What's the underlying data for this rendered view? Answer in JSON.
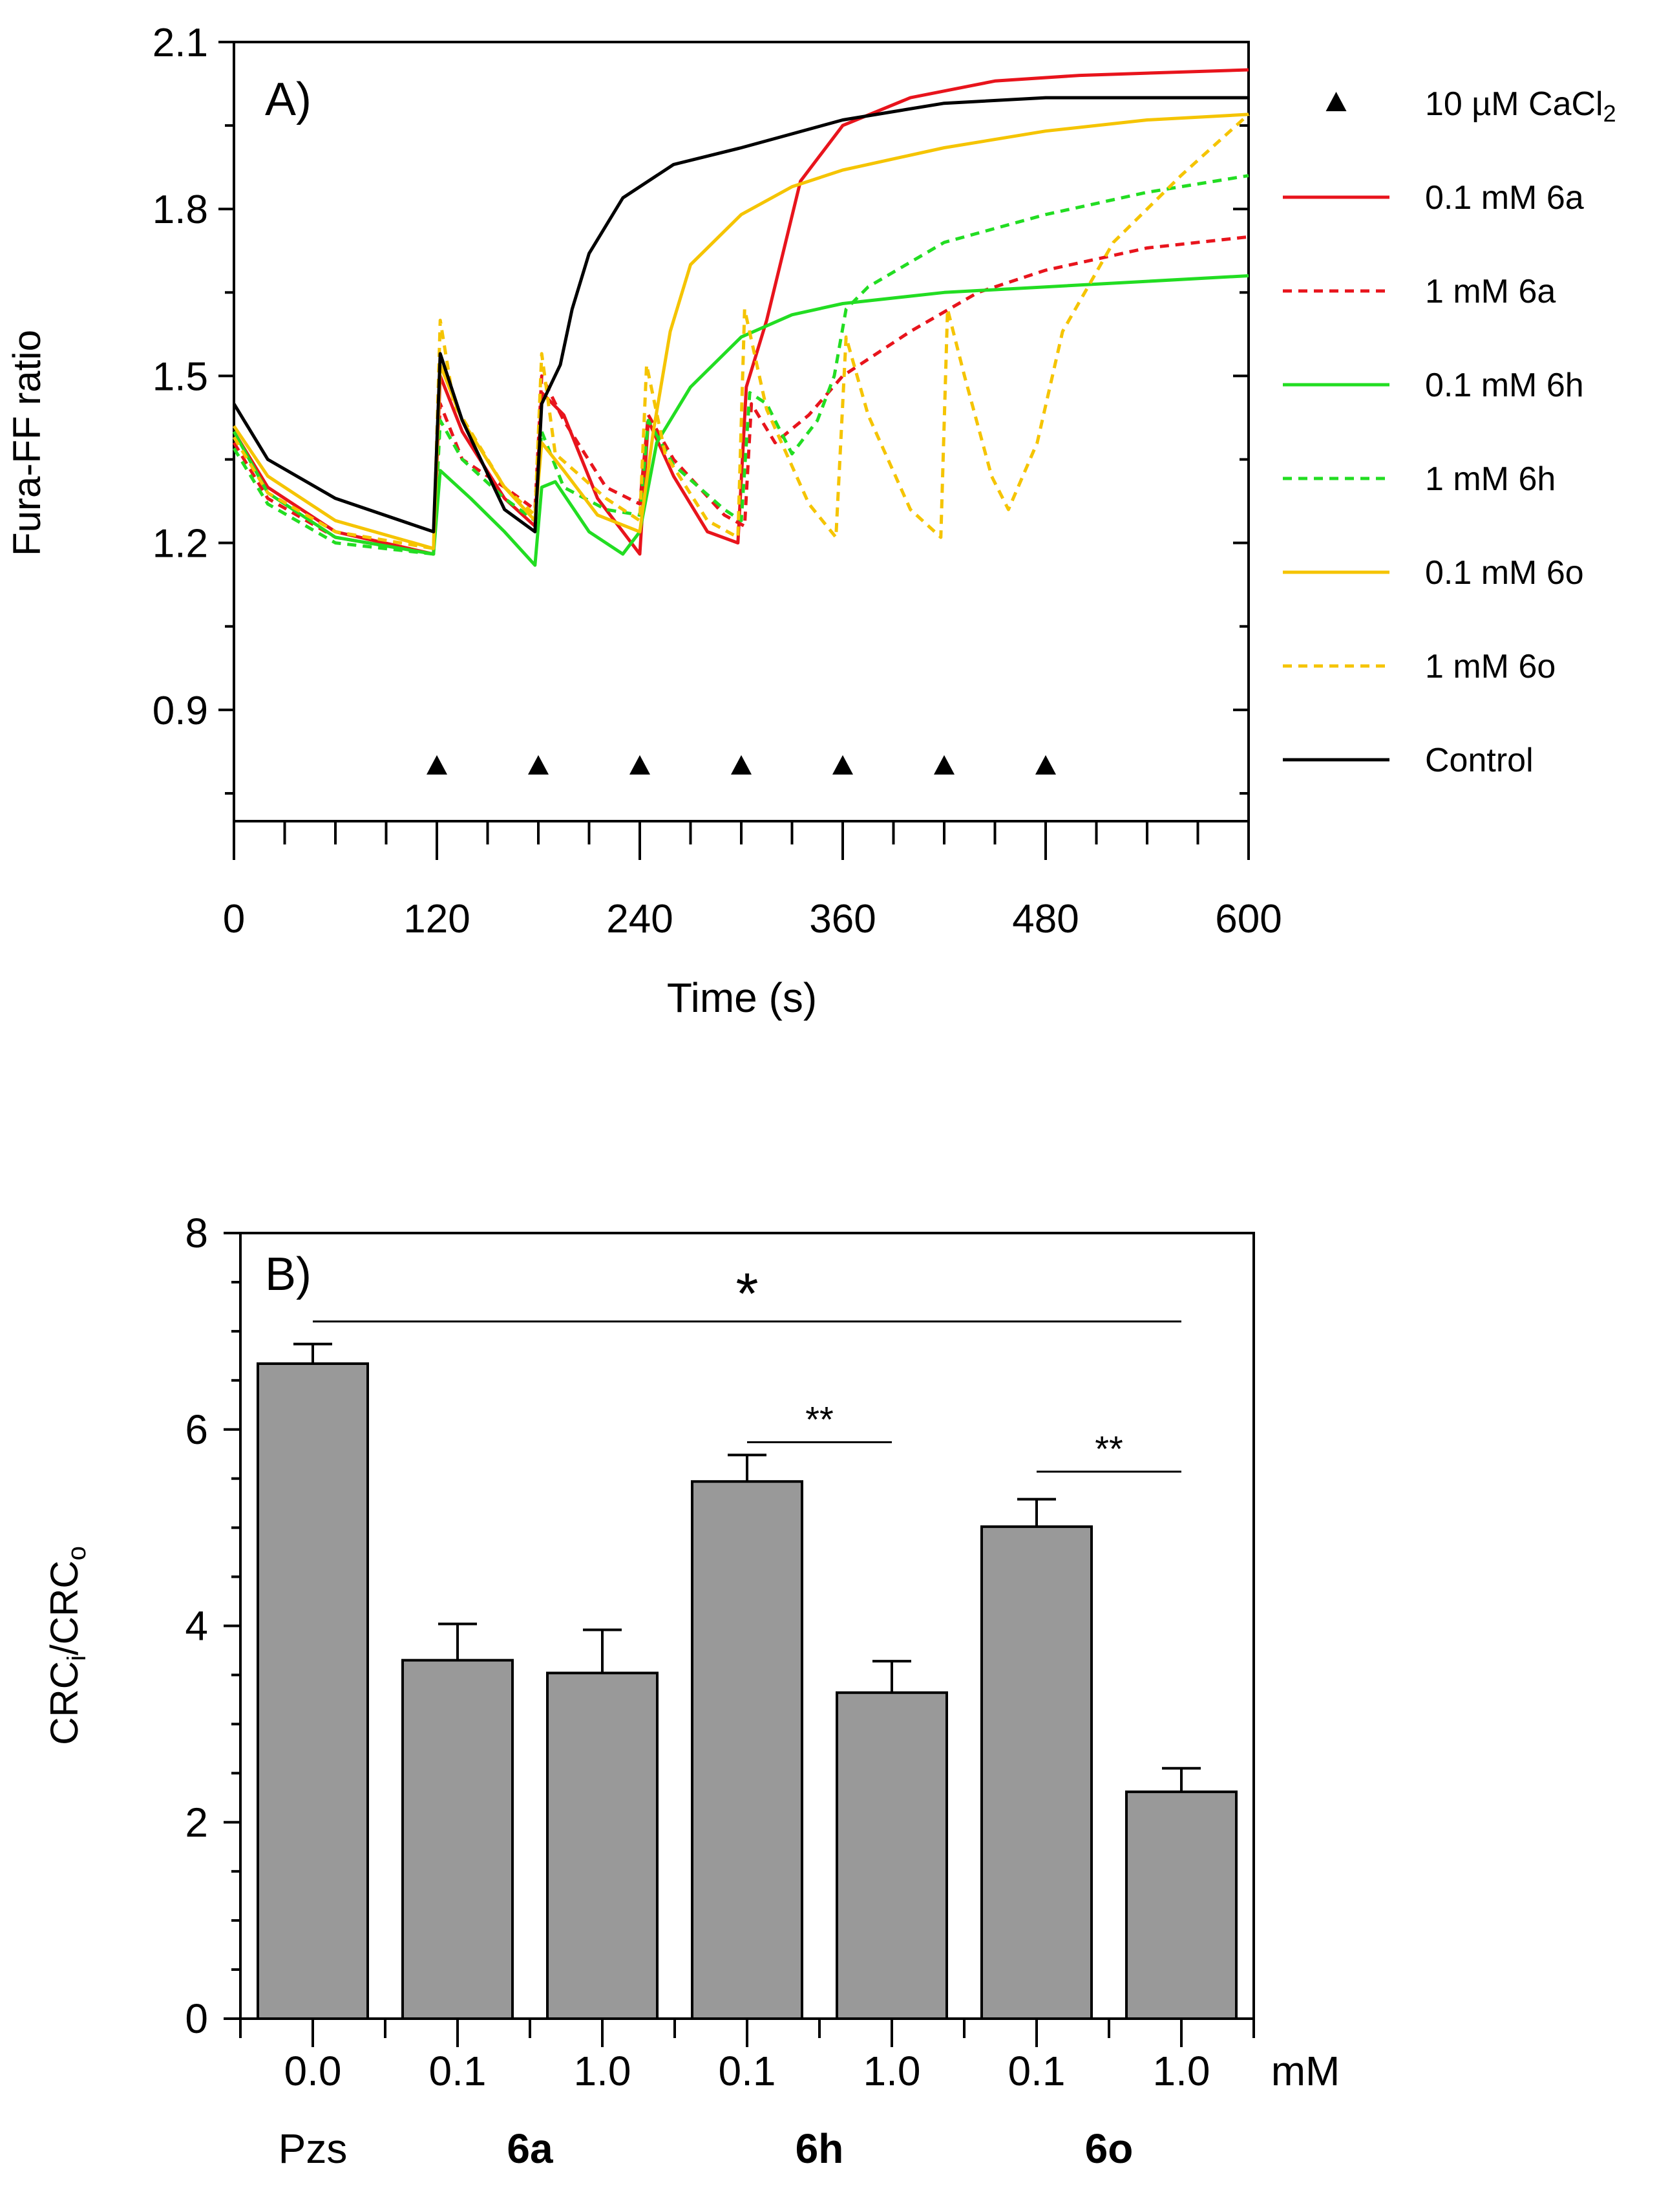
{
  "chart_data": [
    {
      "panel": "A)",
      "type": "line",
      "ylabel": "Fura-FF ratio",
      "xlabel": "Time (s)",
      "xlim": [
        0,
        600
      ],
      "ylim": [
        0.7,
        2.1
      ],
      "xticks": [
        0,
        120,
        240,
        360,
        480,
        600
      ],
      "yticks": [
        0.9,
        1.2,
        1.5,
        1.8,
        2.1
      ],
      "xtick_labels": [
        "0",
        "120",
        "240",
        "360",
        "480",
        "600"
      ],
      "ytick_labels": [
        "0.9",
        "1.2",
        "1.5",
        "1.8",
        "2.1"
      ],
      "marker_y": 0.8,
      "markers": [
        120,
        180,
        240,
        300,
        360,
        420,
        480
      ],
      "legend": {
        "marker_label": "10 µM CaCl",
        "marker_label_sub": "2",
        "entries": [
          {
            "label": "0.1 mM 6a",
            "color": "#e8141c",
            "dash": false
          },
          {
            "label": "1 mM 6a",
            "color": "#e8141c",
            "dash": true
          },
          {
            "label": "0.1 mM 6h",
            "color": "#22dd22",
            "dash": false
          },
          {
            "label": "1 mM 6h",
            "color": "#22dd22",
            "dash": true
          },
          {
            "label": "0.1 mM 6o",
            "color": "#f5c400",
            "dash": false
          },
          {
            "label": "1 mM 6o",
            "color": "#f5c400",
            "dash": true
          },
          {
            "label": "Control",
            "color": "#000000",
            "dash": false
          }
        ]
      },
      "series": [
        {
          "name": "0.1 mM 6a",
          "color": "#e8141c",
          "dash": false,
          "points": [
            [
              0,
              1.4
            ],
            [
              20,
              1.3
            ],
            [
              60,
              1.22
            ],
            [
              118,
              1.18
            ],
            [
              122,
              1.5
            ],
            [
              135,
              1.4
            ],
            [
              160,
              1.28
            ],
            [
              178,
              1.23
            ],
            [
              182,
              1.47
            ],
            [
              195,
              1.43
            ],
            [
              215,
              1.28
            ],
            [
              240,
              1.18
            ],
            [
              245,
              1.42
            ],
            [
              260,
              1.32
            ],
            [
              280,
              1.22
            ],
            [
              298,
              1.2
            ],
            [
              303,
              1.48
            ],
            [
              315,
              1.6
            ],
            [
              335,
              1.85
            ],
            [
              360,
              1.95
            ],
            [
              400,
              2.0
            ],
            [
              450,
              2.03
            ],
            [
              500,
              2.04
            ],
            [
              600,
              2.05
            ]
          ]
        },
        {
          "name": "1 mM 6a",
          "color": "#e8141c",
          "dash": true,
          "points": [
            [
              0,
              1.38
            ],
            [
              20,
              1.28
            ],
            [
              60,
              1.21
            ],
            [
              118,
              1.18
            ],
            [
              122,
              1.45
            ],
            [
              135,
              1.35
            ],
            [
              160,
              1.3
            ],
            [
              178,
              1.26
            ],
            [
              182,
              1.5
            ],
            [
              195,
              1.42
            ],
            [
              220,
              1.3
            ],
            [
              240,
              1.27
            ],
            [
              245,
              1.43
            ],
            [
              260,
              1.35
            ],
            [
              290,
              1.25
            ],
            [
              302,
              1.23
            ],
            [
              306,
              1.45
            ],
            [
              320,
              1.38
            ],
            [
              340,
              1.43
            ],
            [
              360,
              1.5
            ],
            [
              400,
              1.58
            ],
            [
              440,
              1.65
            ],
            [
              480,
              1.69
            ],
            [
              540,
              1.73
            ],
            [
              600,
              1.75
            ]
          ]
        },
        {
          "name": "0.1 mM 6h",
          "color": "#22dd22",
          "dash": false,
          "points": [
            [
              0,
              1.4
            ],
            [
              20,
              1.29
            ],
            [
              60,
              1.21
            ],
            [
              118,
              1.18
            ],
            [
              122,
              1.33
            ],
            [
              140,
              1.28
            ],
            [
              160,
              1.22
            ],
            [
              178,
              1.16
            ],
            [
              182,
              1.3
            ],
            [
              190,
              1.31
            ],
            [
              210,
              1.22
            ],
            [
              230,
              1.18
            ],
            [
              240,
              1.22
            ],
            [
              250,
              1.38
            ],
            [
              270,
              1.48
            ],
            [
              300,
              1.57
            ],
            [
              330,
              1.61
            ],
            [
              360,
              1.63
            ],
            [
              420,
              1.65
            ],
            [
              480,
              1.66
            ],
            [
              540,
              1.67
            ],
            [
              600,
              1.68
            ]
          ]
        },
        {
          "name": "1 mM 6h",
          "color": "#22dd22",
          "dash": true,
          "points": [
            [
              0,
              1.37
            ],
            [
              20,
              1.27
            ],
            [
              60,
              1.2
            ],
            [
              118,
              1.18
            ],
            [
              122,
              1.42
            ],
            [
              135,
              1.35
            ],
            [
              160,
              1.28
            ],
            [
              178,
              1.24
            ],
            [
              182,
              1.4
            ],
            [
              195,
              1.3
            ],
            [
              220,
              1.26
            ],
            [
              240,
              1.25
            ],
            [
              245,
              1.42
            ],
            [
              260,
              1.34
            ],
            [
              290,
              1.26
            ],
            [
              300,
              1.24
            ],
            [
              305,
              1.47
            ],
            [
              315,
              1.45
            ],
            [
              330,
              1.36
            ],
            [
              345,
              1.42
            ],
            [
              355,
              1.5
            ],
            [
              362,
              1.62
            ],
            [
              375,
              1.66
            ],
            [
              420,
              1.74
            ],
            [
              480,
              1.79
            ],
            [
              540,
              1.83
            ],
            [
              600,
              1.86
            ]
          ]
        },
        {
          "name": "0.1 mM 6o",
          "color": "#f5c400",
          "dash": false,
          "points": [
            [
              0,
              1.41
            ],
            [
              20,
              1.32
            ],
            [
              60,
              1.24
            ],
            [
              118,
              1.19
            ],
            [
              122,
              1.52
            ],
            [
              135,
              1.42
            ],
            [
              160,
              1.3
            ],
            [
              178,
              1.24
            ],
            [
              182,
              1.38
            ],
            [
              195,
              1.33
            ],
            [
              215,
              1.25
            ],
            [
              240,
              1.22
            ],
            [
              248,
              1.4
            ],
            [
              258,
              1.58
            ],
            [
              270,
              1.7
            ],
            [
              300,
              1.79
            ],
            [
              330,
              1.84
            ],
            [
              360,
              1.87
            ],
            [
              420,
              1.91
            ],
            [
              480,
              1.94
            ],
            [
              540,
              1.96
            ],
            [
              600,
              1.97
            ]
          ]
        },
        {
          "name": "1 mM 6o",
          "color": "#f5c400",
          "dash": true,
          "points": [
            [
              0,
              1.39
            ],
            [
              20,
              1.29
            ],
            [
              60,
              1.22
            ],
            [
              118,
              1.19
            ],
            [
              122,
              1.6
            ],
            [
              130,
              1.45
            ],
            [
              160,
              1.3
            ],
            [
              178,
              1.25
            ],
            [
              182,
              1.54
            ],
            [
              190,
              1.36
            ],
            [
              220,
              1.28
            ],
            [
              240,
              1.24
            ],
            [
              244,
              1.52
            ],
            [
              255,
              1.36
            ],
            [
              280,
              1.24
            ],
            [
              298,
              1.21
            ],
            [
              302,
              1.62
            ],
            [
              315,
              1.44
            ],
            [
              340,
              1.27
            ],
            [
              356,
              1.21
            ],
            [
              362,
              1.57
            ],
            [
              375,
              1.43
            ],
            [
              400,
              1.26
            ],
            [
              418,
              1.21
            ],
            [
              422,
              1.62
            ],
            [
              432,
              1.5
            ],
            [
              448,
              1.32
            ],
            [
              458,
              1.26
            ],
            [
              475,
              1.38
            ],
            [
              490,
              1.58
            ],
            [
              520,
              1.74
            ],
            [
              560,
              1.86
            ],
            [
              600,
              1.97
            ]
          ]
        },
        {
          "name": "Control",
          "color": "#000000",
          "dash": false,
          "points": [
            [
              0,
              1.45
            ],
            [
              20,
              1.35
            ],
            [
              60,
              1.28
            ],
            [
              118,
              1.22
            ],
            [
              122,
              1.54
            ],
            [
              135,
              1.42
            ],
            [
              160,
              1.26
            ],
            [
              178,
              1.22
            ],
            [
              182,
              1.45
            ],
            [
              193,
              1.52
            ],
            [
              200,
              1.62
            ],
            [
              210,
              1.72
            ],
            [
              230,
              1.82
            ],
            [
              260,
              1.88
            ],
            [
              300,
              1.91
            ],
            [
              360,
              1.96
            ],
            [
              420,
              1.99
            ],
            [
              480,
              2.0
            ],
            [
              540,
              2.0
            ],
            [
              600,
              2.0
            ]
          ]
        }
      ]
    },
    {
      "panel": "B)",
      "type": "bar",
      "ylabel_main": "CRC",
      "ylabel_sub1": "i",
      "ylabel_sep": "/CRC",
      "ylabel_sub2": "o",
      "ylim": [
        0,
        8
      ],
      "yticks": [
        0,
        2,
        4,
        6,
        8
      ],
      "ytick_labels": [
        "0",
        "2",
        "4",
        "6",
        "8"
      ],
      "bar_color": "#999999",
      "conc_labels": [
        "0.0",
        "0.1",
        "1.0",
        "0.1",
        "1.0",
        "0.1",
        "1.0"
      ],
      "conc_colors": [
        "#000000",
        "#e8141c",
        "#e8141c",
        "#22dd22",
        "#22dd22",
        "#f5c400",
        "#f5c400"
      ],
      "unit_label": "mM",
      "groups": [
        {
          "label": "Pzs",
          "color": "#000000",
          "bold": false
        },
        {
          "label": "6a",
          "color": "#e8141c",
          "bold": true
        },
        {
          "label": "6h",
          "color": "#22dd22",
          "bold": true
        },
        {
          "label": "6o",
          "color": "#f5c400",
          "bold": true
        }
      ],
      "values": [
        6.67,
        3.65,
        3.52,
        5.47,
        3.32,
        5.01,
        2.31
      ],
      "errors": [
        0.2,
        0.37,
        0.44,
        0.27,
        0.32,
        0.28,
        0.24
      ],
      "significance": [
        {
          "from": 0,
          "to": 6,
          "y": 7.1,
          "label": "*"
        },
        {
          "from": 3,
          "to": 4,
          "y": 5.87,
          "label": "**"
        },
        {
          "from": 5,
          "to": 6,
          "y": 5.57,
          "label": "**"
        }
      ]
    }
  ]
}
